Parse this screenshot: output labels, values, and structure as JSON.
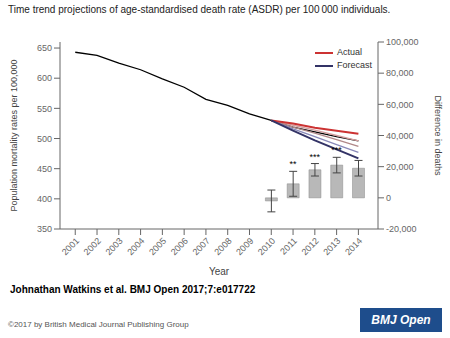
{
  "chart_data": {
    "type": "combo",
    "title": "Time trend projections of age-standardised death rate (ASDR) per 100 000 individuals.",
    "x_label": "Year",
    "y_label": "Population mortality rates per 100,000",
    "y2_label": "Difference in deaths",
    "x": [
      2001,
      2002,
      2003,
      2004,
      2005,
      2006,
      2007,
      2008,
      2009,
      2010,
      2011,
      2012,
      2013,
      2014
    ],
    "xlim": [
      2000.3,
      2014.9
    ],
    "xticks": [
      2001,
      2002,
      2003,
      2004,
      2005,
      2006,
      2007,
      2008,
      2009,
      2010,
      2011,
      2012,
      2013,
      2014
    ],
    "ylim": [
      350,
      660
    ],
    "yticks": [
      350,
      400,
      450,
      500,
      550,
      600,
      650
    ],
    "y2lim": [
      -20000,
      100000
    ],
    "y2ticks": [
      {
        "value": -20000,
        "label": "-20,000"
      },
      0,
      {
        "value": 20000,
        "label": "20,000"
      },
      {
        "value": 40000,
        "label": "40,000"
      },
      {
        "value": 60000,
        "label": "60,000"
      },
      {
        "value": 80000,
        "label": "80,000"
      },
      {
        "value": 100000,
        "label": "100,000"
      }
    ],
    "grid": false,
    "legend": "upper right",
    "series": [
      {
        "type": "bar",
        "axis": "y2",
        "color": "#b8b8b8",
        "values": [
          null,
          null,
          null,
          null,
          null,
          null,
          null,
          null,
          null,
          -2000,
          9000,
          18000,
          21000,
          19000
        ],
        "error_low": [
          null,
          null,
          null,
          null,
          null,
          null,
          null,
          null,
          null,
          7000,
          8000,
          4000,
          5000,
          5000
        ],
        "error_high": [
          null,
          null,
          null,
          null,
          null,
          null,
          null,
          null,
          null,
          7000,
          8000,
          4000,
          5000,
          5000
        ],
        "significance": [
          null,
          null,
          null,
          null,
          null,
          null,
          null,
          null,
          null,
          null,
          "**",
          "***",
          "***",
          null
        ]
      },
      {
        "type": "line",
        "color": "#000000",
        "values": [
          643,
          638,
          625,
          614,
          599,
          585,
          565,
          555,
          541,
          530,
          519,
          511,
          503,
          496
        ]
      },
      {
        "type": "line",
        "color": "#d4a0a0",
        "values": [
          null,
          null,
          null,
          null,
          null,
          null,
          null,
          null,
          null,
          530,
          522,
          514,
          505,
          496
        ]
      },
      {
        "type": "line",
        "color": "#b08888",
        "values": [
          null,
          null,
          null,
          null,
          null,
          null,
          null,
          null,
          null,
          530,
          519,
          509,
          498,
          487
        ]
      },
      {
        "type": "line",
        "color": "#8888b8",
        "values": [
          null,
          null,
          null,
          null,
          null,
          null,
          null,
          null,
          null,
          530,
          516,
          503,
          490,
          477
        ]
      },
      {
        "type": "line",
        "name": "Actual",
        "color": "#cc3333",
        "values": [
          null,
          null,
          null,
          null,
          null,
          null,
          null,
          null,
          null,
          530,
          525,
          518,
          513,
          508
        ]
      },
      {
        "type": "line",
        "name": "Forecast",
        "color": "#333366",
        "values": [
          null,
          null,
          null,
          null,
          null,
          null,
          null,
          null,
          null,
          530,
          513,
          497,
          482,
          467
        ]
      }
    ],
    "citation": "Johnathan Watkins et al. BMJ Open 2017;7:e017722",
    "copyright": "©2017 by British Medical Journal Publishing Group",
    "logo_text": "BMJ Open",
    "logo_color": "#1e4d8c"
  }
}
